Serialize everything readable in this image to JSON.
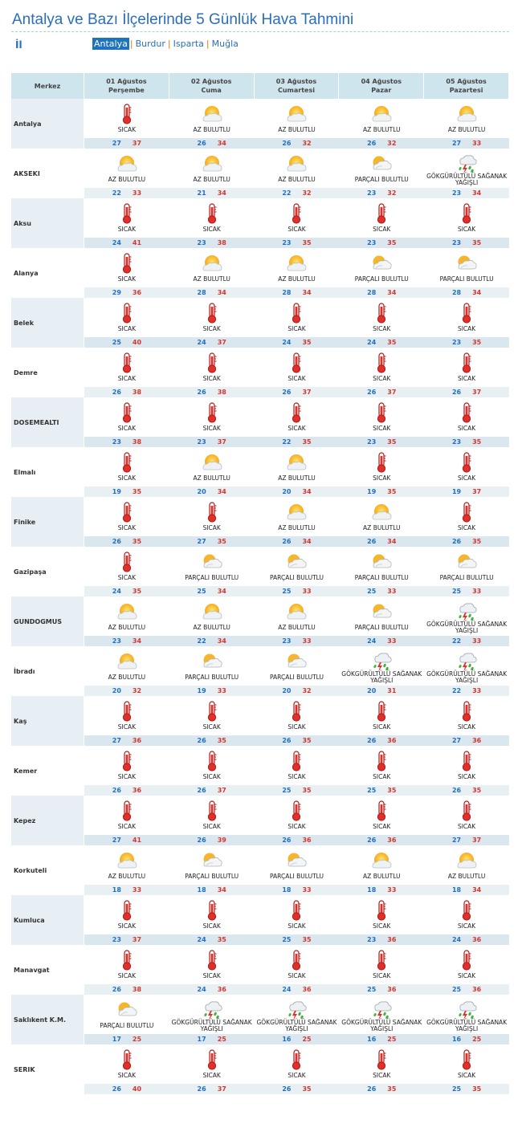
{
  "page": {
    "title": "Antalya ve Bazı İlçelerinde 5 Günlük Hava Tahmini",
    "il_label": "İl"
  },
  "cities": [
    {
      "name": "Antalya",
      "active": true
    },
    {
      "name": "Burdur",
      "active": false
    },
    {
      "name": "Isparta",
      "active": false
    },
    {
      "name": "Muğla",
      "active": false
    }
  ],
  "table": {
    "merkez_label": "Merkez",
    "days": [
      {
        "date": "01 Ağustos",
        "weekday": "Perşembe"
      },
      {
        "date": "02 Ağustos",
        "weekday": "Cuma"
      },
      {
        "date": "03 Ağustos",
        "weekday": "Cumartesi"
      },
      {
        "date": "04 Ağustos",
        "weekday": "Pazar"
      },
      {
        "date": "05 Ağustos",
        "weekday": "Pazartesi"
      }
    ],
    "rows": [
      {
        "name": "Antalya",
        "days": [
          {
            "icon": "thermometer-icon",
            "desc": "SICAK",
            "min": "27",
            "max": "37"
          },
          {
            "icon": "partly-sunny-icon",
            "desc": "AZ BULUTLU",
            "min": "26",
            "max": "34"
          },
          {
            "icon": "partly-sunny-icon",
            "desc": "AZ BULUTLU",
            "min": "26",
            "max": "32"
          },
          {
            "icon": "partly-sunny-icon",
            "desc": "AZ BULUTLU",
            "min": "26",
            "max": "32"
          },
          {
            "icon": "partly-sunny-icon",
            "desc": "AZ BULUTLU",
            "min": "27",
            "max": "33"
          }
        ]
      },
      {
        "name": "AKSEKI",
        "days": [
          {
            "icon": "partly-sunny-icon",
            "desc": "AZ BULUTLU",
            "min": "22",
            "max": "33"
          },
          {
            "icon": "partly-sunny-icon",
            "desc": "AZ BULUTLU",
            "min": "21",
            "max": "34"
          },
          {
            "icon": "partly-sunny-icon",
            "desc": "AZ BULUTLU",
            "min": "22",
            "max": "32"
          },
          {
            "icon": "cloudy-sun-icon",
            "desc": "PARÇALI BULUTLU",
            "min": "23",
            "max": "32"
          },
          {
            "icon": "thunder-rain-icon",
            "desc": "GÖKGÜRÜLTÜLÜ SAĞANAK YAĞIŞLI",
            "min": "23",
            "max": "34"
          }
        ]
      },
      {
        "name": "Aksu",
        "days": [
          {
            "icon": "thermometer-icon",
            "desc": "SICAK",
            "min": "24",
            "max": "41"
          },
          {
            "icon": "thermometer-icon",
            "desc": "SICAK",
            "min": "23",
            "max": "38"
          },
          {
            "icon": "thermometer-icon",
            "desc": "SICAK",
            "min": "23",
            "max": "35"
          },
          {
            "icon": "thermometer-icon",
            "desc": "SICAK",
            "min": "23",
            "max": "35"
          },
          {
            "icon": "thermometer-icon",
            "desc": "SICAK",
            "min": "23",
            "max": "35"
          }
        ]
      },
      {
        "name": "Alanya",
        "days": [
          {
            "icon": "thermometer-icon",
            "desc": "SICAK",
            "min": "29",
            "max": "36"
          },
          {
            "icon": "partly-sunny-icon",
            "desc": "AZ BULUTLU",
            "min": "28",
            "max": "34"
          },
          {
            "icon": "partly-sunny-icon",
            "desc": "AZ BULUTLU",
            "min": "28",
            "max": "34"
          },
          {
            "icon": "cloudy-sun-icon",
            "desc": "PARÇALI BULUTLU",
            "min": "28",
            "max": "34"
          },
          {
            "icon": "cloudy-sun-icon",
            "desc": "PARÇALI BULUTLU",
            "min": "28",
            "max": "34"
          }
        ]
      },
      {
        "name": "Belek",
        "days": [
          {
            "icon": "thermometer-icon",
            "desc": "SICAK",
            "min": "25",
            "max": "40"
          },
          {
            "icon": "thermometer-icon",
            "desc": "SICAK",
            "min": "24",
            "max": "37"
          },
          {
            "icon": "thermometer-icon",
            "desc": "SICAK",
            "min": "24",
            "max": "35"
          },
          {
            "icon": "thermometer-icon",
            "desc": "SICAK",
            "min": "24",
            "max": "35"
          },
          {
            "icon": "thermometer-icon",
            "desc": "SICAK",
            "min": "23",
            "max": "35"
          }
        ]
      },
      {
        "name": "Demre",
        "days": [
          {
            "icon": "thermometer-icon",
            "desc": "SICAK",
            "min": "26",
            "max": "38"
          },
          {
            "icon": "thermometer-icon",
            "desc": "SICAK",
            "min": "26",
            "max": "38"
          },
          {
            "icon": "thermometer-icon",
            "desc": "SICAK",
            "min": "26",
            "max": "37"
          },
          {
            "icon": "thermometer-icon",
            "desc": "SICAK",
            "min": "26",
            "max": "37"
          },
          {
            "icon": "thermometer-icon",
            "desc": "SICAK",
            "min": "26",
            "max": "37"
          }
        ]
      },
      {
        "name": "DOSEMEALTI",
        "days": [
          {
            "icon": "thermometer-icon",
            "desc": "SICAK",
            "min": "23",
            "max": "38"
          },
          {
            "icon": "thermometer-icon",
            "desc": "SICAK",
            "min": "23",
            "max": "37"
          },
          {
            "icon": "thermometer-icon",
            "desc": "SICAK",
            "min": "22",
            "max": "35"
          },
          {
            "icon": "thermometer-icon",
            "desc": "SICAK",
            "min": "23",
            "max": "35"
          },
          {
            "icon": "thermometer-icon",
            "desc": "SICAK",
            "min": "23",
            "max": "35"
          }
        ]
      },
      {
        "name": "Elmalı",
        "days": [
          {
            "icon": "thermometer-icon",
            "desc": "SICAK",
            "min": "19",
            "max": "35"
          },
          {
            "icon": "partly-sunny-icon",
            "desc": "AZ BULUTLU",
            "min": "20",
            "max": "34"
          },
          {
            "icon": "partly-sunny-icon",
            "desc": "AZ BULUTLU",
            "min": "20",
            "max": "34"
          },
          {
            "icon": "thermometer-icon",
            "desc": "SICAK",
            "min": "19",
            "max": "35"
          },
          {
            "icon": "thermometer-icon",
            "desc": "SICAK",
            "min": "19",
            "max": "37"
          }
        ]
      },
      {
        "name": "Finike",
        "days": [
          {
            "icon": "thermometer-icon",
            "desc": "SICAK",
            "min": "26",
            "max": "35"
          },
          {
            "icon": "thermometer-icon",
            "desc": "SICAK",
            "min": "27",
            "max": "35"
          },
          {
            "icon": "partly-sunny-icon",
            "desc": "AZ BULUTLU",
            "min": "26",
            "max": "34"
          },
          {
            "icon": "partly-sunny-icon",
            "desc": "AZ BULUTLU",
            "min": "26",
            "max": "34"
          },
          {
            "icon": "thermometer-icon",
            "desc": "SICAK",
            "min": "26",
            "max": "35"
          }
        ]
      },
      {
        "name": "Gazipaşa",
        "days": [
          {
            "icon": "thermometer-icon",
            "desc": "SICAK",
            "min": "24",
            "max": "35"
          },
          {
            "icon": "cloudy-sun-icon",
            "desc": "PARÇALI BULUTLU",
            "min": "25",
            "max": "34"
          },
          {
            "icon": "cloudy-sun-icon",
            "desc": "PARÇALI BULUTLU",
            "min": "25",
            "max": "33"
          },
          {
            "icon": "cloudy-sun-icon",
            "desc": "PARÇALI BULUTLU",
            "min": "25",
            "max": "33"
          },
          {
            "icon": "cloudy-sun-icon",
            "desc": "PARÇALI BULUTLU",
            "min": "25",
            "max": "33"
          }
        ]
      },
      {
        "name": "GUNDOGMUS",
        "days": [
          {
            "icon": "partly-sunny-icon",
            "desc": "AZ BULUTLU",
            "min": "23",
            "max": "34"
          },
          {
            "icon": "partly-sunny-icon",
            "desc": "AZ BULUTLU",
            "min": "22",
            "max": "34"
          },
          {
            "icon": "partly-sunny-icon",
            "desc": "AZ BULUTLU",
            "min": "23",
            "max": "33"
          },
          {
            "icon": "cloudy-sun-icon",
            "desc": "PARÇALI BULUTLU",
            "min": "24",
            "max": "33"
          },
          {
            "icon": "thunder-rain-icon",
            "desc": "GÖKGÜRÜLTÜLÜ SAĞANAK YAĞIŞLI",
            "min": "22",
            "max": "33"
          }
        ]
      },
      {
        "name": "İbradı",
        "days": [
          {
            "icon": "partly-sunny-icon",
            "desc": "AZ BULUTLU",
            "min": "20",
            "max": "32"
          },
          {
            "icon": "cloudy-sun-icon",
            "desc": "PARÇALI BULUTLU",
            "min": "19",
            "max": "33"
          },
          {
            "icon": "cloudy-sun-icon",
            "desc": "PARÇALI BULUTLU",
            "min": "20",
            "max": "32"
          },
          {
            "icon": "thunder-rain-icon",
            "desc": "GÖKGÜRÜLTÜLÜ SAĞANAK YAĞIŞLI",
            "min": "20",
            "max": "31"
          },
          {
            "icon": "thunder-rain-icon",
            "desc": "GÖKGÜRÜLTÜLÜ SAĞANAK YAĞIŞLI",
            "min": "22",
            "max": "33"
          }
        ]
      },
      {
        "name": "Kaş",
        "days": [
          {
            "icon": "thermometer-icon",
            "desc": "SICAK",
            "min": "27",
            "max": "36"
          },
          {
            "icon": "thermometer-icon",
            "desc": "SICAK",
            "min": "26",
            "max": "35"
          },
          {
            "icon": "thermometer-icon",
            "desc": "SICAK",
            "min": "26",
            "max": "35"
          },
          {
            "icon": "thermometer-icon",
            "desc": "SICAK",
            "min": "26",
            "max": "36"
          },
          {
            "icon": "thermometer-icon",
            "desc": "SICAK",
            "min": "27",
            "max": "36"
          }
        ]
      },
      {
        "name": "Kemer",
        "days": [
          {
            "icon": "thermometer-icon",
            "desc": "SICAK",
            "min": "26",
            "max": "36"
          },
          {
            "icon": "thermometer-icon",
            "desc": "SICAK",
            "min": "26",
            "max": "37"
          },
          {
            "icon": "thermometer-icon",
            "desc": "SICAK",
            "min": "25",
            "max": "35"
          },
          {
            "icon": "thermometer-icon",
            "desc": "SICAK",
            "min": "25",
            "max": "35"
          },
          {
            "icon": "thermometer-icon",
            "desc": "SICAK",
            "min": "26",
            "max": "35"
          }
        ]
      },
      {
        "name": "Kepez",
        "days": [
          {
            "icon": "thermometer-icon",
            "desc": "SICAK",
            "min": "27",
            "max": "41"
          },
          {
            "icon": "thermometer-icon",
            "desc": "SICAK",
            "min": "26",
            "max": "39"
          },
          {
            "icon": "thermometer-icon",
            "desc": "SICAK",
            "min": "26",
            "max": "36"
          },
          {
            "icon": "thermometer-icon",
            "desc": "SICAK",
            "min": "26",
            "max": "36"
          },
          {
            "icon": "thermometer-icon",
            "desc": "SICAK",
            "min": "27",
            "max": "37"
          }
        ]
      },
      {
        "name": "Korkuteli",
        "days": [
          {
            "icon": "partly-sunny-icon",
            "desc": "AZ BULUTLU",
            "min": "18",
            "max": "33"
          },
          {
            "icon": "cloudy-sun-icon",
            "desc": "PARÇALI BULUTLU",
            "min": "18",
            "max": "34"
          },
          {
            "icon": "cloudy-sun-icon",
            "desc": "PARÇALI BULUTLU",
            "min": "18",
            "max": "33"
          },
          {
            "icon": "partly-sunny-icon",
            "desc": "AZ BULUTLU",
            "min": "18",
            "max": "33"
          },
          {
            "icon": "partly-sunny-icon",
            "desc": "AZ BULUTLU",
            "min": "18",
            "max": "34"
          }
        ]
      },
      {
        "name": "Kumluca",
        "days": [
          {
            "icon": "thermometer-icon",
            "desc": "SICAK",
            "min": "23",
            "max": "37"
          },
          {
            "icon": "thermometer-icon",
            "desc": "SICAK",
            "min": "24",
            "max": "35"
          },
          {
            "icon": "thermometer-icon",
            "desc": "SICAK",
            "min": "25",
            "max": "35"
          },
          {
            "icon": "thermometer-icon",
            "desc": "SICAK",
            "min": "23",
            "max": "36"
          },
          {
            "icon": "thermometer-icon",
            "desc": "SICAK",
            "min": "24",
            "max": "36"
          }
        ]
      },
      {
        "name": "Manavgat",
        "days": [
          {
            "icon": "thermometer-icon",
            "desc": "SICAK",
            "min": "26",
            "max": "38"
          },
          {
            "icon": "thermometer-icon",
            "desc": "SICAK",
            "min": "24",
            "max": "36"
          },
          {
            "icon": "thermometer-icon",
            "desc": "SICAK",
            "min": "24",
            "max": "36"
          },
          {
            "icon": "thermometer-icon",
            "desc": "SICAK",
            "min": "25",
            "max": "36"
          },
          {
            "icon": "thermometer-icon",
            "desc": "SICAK",
            "min": "25",
            "max": "36"
          }
        ]
      },
      {
        "name": "Saklıkent K.M.",
        "days": [
          {
            "icon": "cloudy-sun-icon",
            "desc": "PARÇALI BULUTLU",
            "min": "17",
            "max": "25"
          },
          {
            "icon": "thunder-rain-icon",
            "desc": "GÖKGÜRÜLTÜLÜ SAĞANAK YAĞIŞLI",
            "min": "17",
            "max": "25"
          },
          {
            "icon": "thunder-rain-icon",
            "desc": "GÖKGÜRÜLTÜLÜ SAĞANAK YAĞIŞLI",
            "min": "16",
            "max": "25"
          },
          {
            "icon": "thunder-rain-icon",
            "desc": "GÖKGÜRÜLTÜLÜ SAĞANAK YAĞIŞLI",
            "min": "16",
            "max": "25"
          },
          {
            "icon": "thunder-rain-icon",
            "desc": "GÖKGÜRÜLTÜLÜ SAĞANAK YAĞIŞLI",
            "min": "16",
            "max": "25"
          }
        ]
      },
      {
        "name": "SERIK",
        "days": [
          {
            "icon": "thermometer-icon",
            "desc": "SICAK",
            "min": "26",
            "max": "40"
          },
          {
            "icon": "thermometer-icon",
            "desc": "SICAK",
            "min": "26",
            "max": "37"
          },
          {
            "icon": "thermometer-icon",
            "desc": "SICAK",
            "min": "26",
            "max": "35"
          },
          {
            "icon": "thermometer-icon",
            "desc": "SICAK",
            "min": "26",
            "max": "35"
          },
          {
            "icon": "thermometer-icon",
            "desc": "SICAK",
            "min": "25",
            "max": "35"
          }
        ]
      }
    ]
  }
}
